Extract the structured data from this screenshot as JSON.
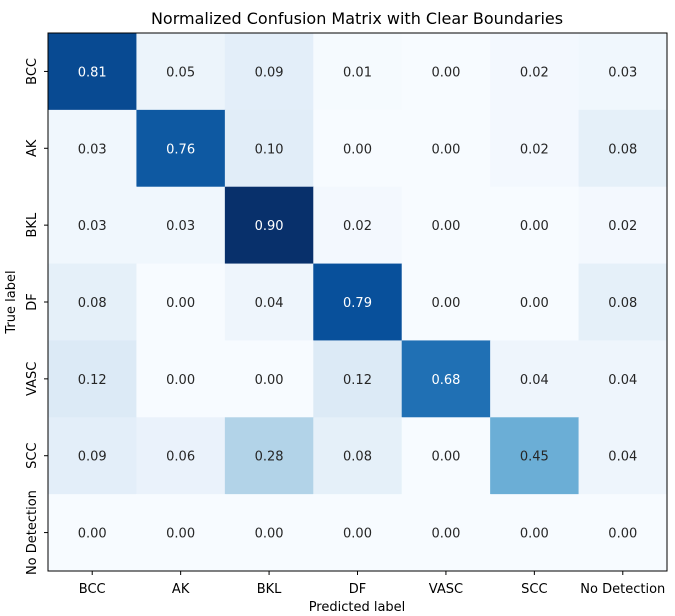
{
  "chart_data": {
    "type": "heatmap",
    "title": "Normalized Confusion Matrix with Clear Boundaries",
    "xlabel": "Predicted label",
    "ylabel": "True label",
    "x_categories": [
      "BCC",
      "AK",
      "BKL",
      "DF",
      "VASC",
      "SCC",
      "No Detection"
    ],
    "y_categories": [
      "BCC",
      "AK",
      "BKL",
      "DF",
      "VASC",
      "SCC",
      "No Detection"
    ],
    "values": [
      [
        0.81,
        0.05,
        0.09,
        0.01,
        0.0,
        0.02,
        0.03
      ],
      [
        0.03,
        0.76,
        0.1,
        0.0,
        0.0,
        0.02,
        0.08
      ],
      [
        0.03,
        0.03,
        0.9,
        0.02,
        0.0,
        0.0,
        0.02
      ],
      [
        0.08,
        0.0,
        0.04,
        0.79,
        0.0,
        0.0,
        0.08
      ],
      [
        0.12,
        0.0,
        0.0,
        0.12,
        0.68,
        0.04,
        0.04
      ],
      [
        0.09,
        0.06,
        0.28,
        0.08,
        0.0,
        0.45,
        0.04
      ],
      [
        0.0,
        0.0,
        0.0,
        0.0,
        0.0,
        0.0,
        0.0
      ]
    ],
    "value_format": "0.00",
    "colormap": "Blues",
    "color_range": [
      0.0,
      0.9
    ],
    "grid": false
  }
}
